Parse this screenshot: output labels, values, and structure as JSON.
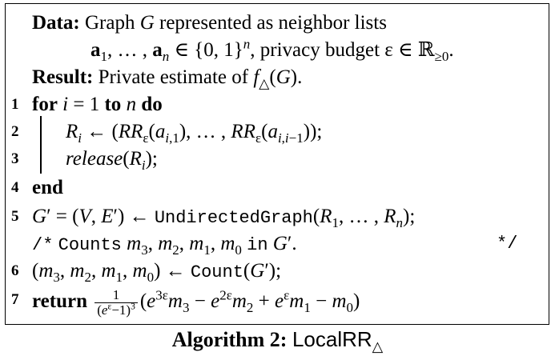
{
  "header": {
    "data_label": "Data:",
    "data_text_1": "Graph",
    "data_text_2": "represented as neighbor lists",
    "privacy_text": ", privacy budget",
    "result_label": "Result:",
    "result_text": "Private estimate of"
  },
  "keywords": {
    "for": "for",
    "to": "to",
    "do": "do",
    "end": "end",
    "return": "return"
  },
  "functions": {
    "release": "release",
    "undirected_graph": "UndirectedGraph",
    "count": "Count",
    "counts_comment_word": "Counts",
    "in_word": "in",
    "comment_open": "/*",
    "comment_close": "*/"
  },
  "line_numbers": [
    "1",
    "2",
    "3",
    "4",
    "5",
    "6",
    "7"
  ],
  "caption": {
    "label": "Algorithm 2:",
    "name": "LocalRR"
  }
}
